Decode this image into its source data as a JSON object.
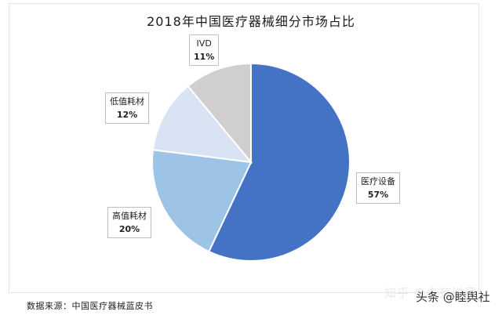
{
  "chart_data": {
    "type": "pie",
    "title": "2018年中国医疗器械细分市场占比",
    "categories": [
      "医疗设备",
      "高值耗材",
      "低值耗材",
      "IVD"
    ],
    "values": [
      57,
      20,
      12,
      11
    ],
    "unit": "%",
    "colors": [
      "#4472C4",
      "#9DC3E6",
      "#DAE3F3",
      "#D0CECE"
    ],
    "labels": [
      {
        "name": "医疗设备",
        "pct": "57%"
      },
      {
        "name": "高值耗材",
        "pct": "20%"
      },
      {
        "name": "低值耗材",
        "pct": "12%"
      },
      {
        "name": "IVD",
        "pct": "11%"
      }
    ],
    "legend": "none (data callouts)"
  },
  "source": "数据来源：中国医疗器械蓝皮书",
  "watermarks": {
    "zhihu": "知乎 @老范说评",
    "toutiao": "头条 @睦舆社"
  }
}
